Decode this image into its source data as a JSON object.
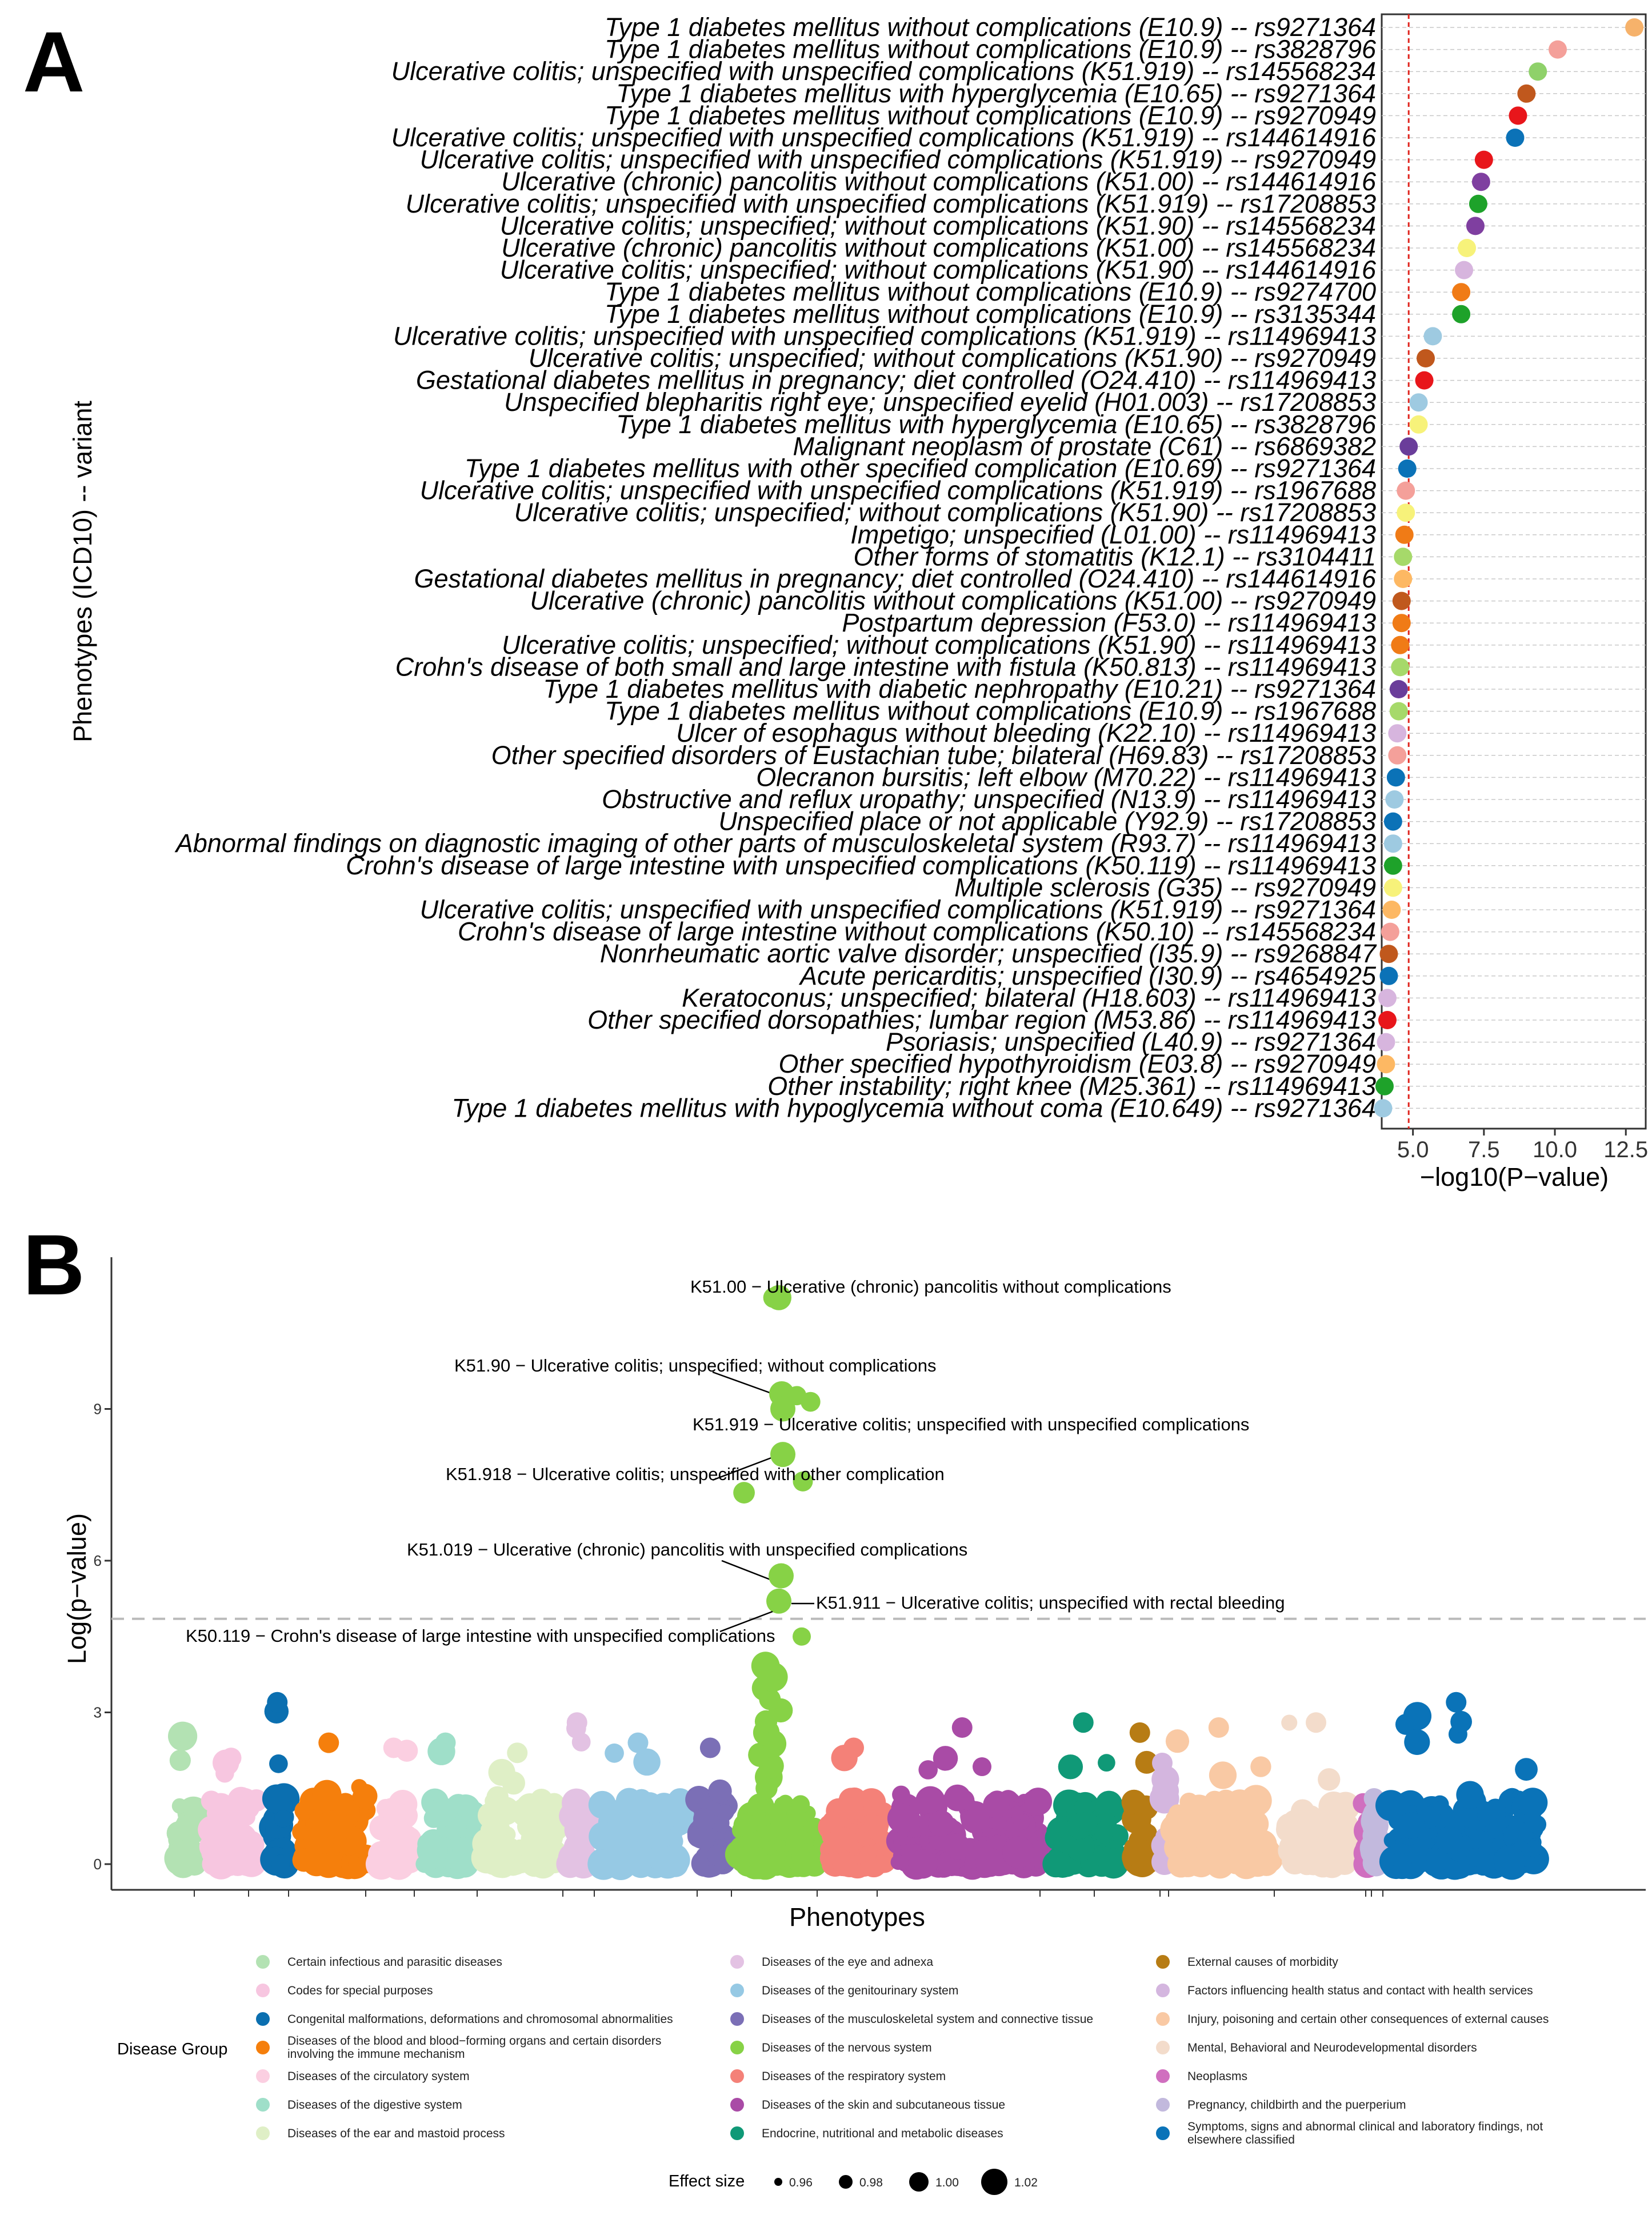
{
  "panel_a": {
    "letter": "A",
    "chart_data": {
      "type": "scatter",
      "orientation": "horizontal-dotplot",
      "title": "",
      "xlabel": "−log10(P−value)",
      "ylabel": "Phenotypes (ICD10) -- variant",
      "xlim": [
        3.9,
        13.2
      ],
      "xticks": [
        5.0,
        7.5,
        10.0,
        12.5
      ],
      "xtick_labels": [
        "5.0",
        "7.5",
        "10.0",
        "12.5"
      ],
      "threshold": 4.85,
      "threshold_color": "#e0261f",
      "grid": "horizontal dashed",
      "points": [
        {
          "label": "Type 1 diabetes mellitus without complications (E10.9) -- rs9271364",
          "value": 12.8,
          "color": "#f6b26b"
        },
        {
          "label": "Type 1 diabetes mellitus without complications (E10.9) -- rs3828796",
          "value": 10.1,
          "color": "#f4a09a"
        },
        {
          "label": "Ulcerative colitis; unspecified with unspecified complications (K51.919) -- rs145568234",
          "value": 9.4,
          "color": "#8fd16a"
        },
        {
          "label": "Type 1 diabetes mellitus with hyperglycemia (E10.65) -- rs9271364",
          "value": 9.0,
          "color": "#c0581d"
        },
        {
          "label": "Type 1 diabetes mellitus without complications (E10.9) -- rs9270949",
          "value": 8.7,
          "color": "#e8161b"
        },
        {
          "label": "Ulcerative colitis; unspecified with unspecified complications (K51.919) -- rs144614916",
          "value": 8.6,
          "color": "#0b72b7"
        },
        {
          "label": "Ulcerative colitis; unspecified with unspecified complications (K51.919) -- rs9270949",
          "value": 7.5,
          "color": "#e8161b"
        },
        {
          "label": "Ulcerative (chronic) pancolitis without complications (K51.00) -- rs144614916",
          "value": 7.4,
          "color": "#7f3fa0"
        },
        {
          "label": "Ulcerative colitis; unspecified with unspecified complications (K51.919) -- rs17208853",
          "value": 7.3,
          "color": "#1ea22a"
        },
        {
          "label": "Ulcerative colitis; unspecified; without complications (K51.90) -- rs145568234",
          "value": 7.2,
          "color": "#7f3fa0"
        },
        {
          "label": "Ulcerative (chronic) pancolitis without complications (K51.00) -- rs145568234",
          "value": 6.9,
          "color": "#f7f27a"
        },
        {
          "label": "Ulcerative colitis; unspecified; without complications (K51.90) -- rs144614916",
          "value": 6.8,
          "color": "#d7b5de"
        },
        {
          "label": "Type 1 diabetes mellitus without complications (E10.9) -- rs9274700",
          "value": 6.7,
          "color": "#f07b16"
        },
        {
          "label": "Type 1 diabetes mellitus without complications (E10.9) -- rs3135344",
          "value": 6.7,
          "color": "#1ea22a"
        },
        {
          "label": "Ulcerative colitis; unspecified with unspecified complications (K51.919) -- rs114969413",
          "value": 5.7,
          "color": "#9ecae1"
        },
        {
          "label": "Ulcerative colitis; unspecified; without complications (K51.90) -- rs9270949",
          "value": 5.45,
          "color": "#c0581d"
        },
        {
          "label": "Gestational diabetes mellitus in pregnancy; diet controlled (O24.410) -- rs114969413",
          "value": 5.4,
          "color": "#e8161b"
        },
        {
          "label": "Unspecified blepharitis right eye; unspecified eyelid (H01.003) -- rs17208853",
          "value": 5.2,
          "color": "#9ecae1"
        },
        {
          "label": "Type 1 diabetes mellitus with hyperglycemia (E10.65) -- rs3828796",
          "value": 5.2,
          "color": "#f7f27a"
        },
        {
          "label": "Malignant neoplasm of prostate (C61) -- rs6869382",
          "value": 4.85,
          "color": "#6a3d9a"
        },
        {
          "label": "Type 1 diabetes mellitus with other specified complication (E10.69) -- rs9271364",
          "value": 4.8,
          "color": "#0b72b7"
        },
        {
          "label": "Ulcerative colitis; unspecified with unspecified complications (K51.919) -- rs1967688",
          "value": 4.75,
          "color": "#f4a09a"
        },
        {
          "label": "Ulcerative colitis; unspecified; without complications (K51.90) -- rs17208853",
          "value": 4.75,
          "color": "#f7f27a"
        },
        {
          "label": "Impetigo; unspecified (L01.00) -- rs114969413",
          "value": 4.7,
          "color": "#f07b16"
        },
        {
          "label": "Other forms of stomatitis (K12.1) -- rs3104411",
          "value": 4.65,
          "color": "#a6d96a"
        },
        {
          "label": "Gestational diabetes mellitus in pregnancy; diet controlled (O24.410) -- rs144614916",
          "value": 4.65,
          "color": "#fdb863"
        },
        {
          "label": "Ulcerative (chronic) pancolitis without complications (K51.00) -- rs9270949",
          "value": 4.6,
          "color": "#c0581d"
        },
        {
          "label": "Postpartum depression (F53.0) -- rs114969413",
          "value": 4.6,
          "color": "#f07b16"
        },
        {
          "label": "Ulcerative colitis; unspecified; without complications (K51.90) -- rs114969413",
          "value": 4.55,
          "color": "#f07b16"
        },
        {
          "label": "Crohn's disease of both small and large intestine with fistula (K50.813) -- rs114969413",
          "value": 4.55,
          "color": "#a6d96a"
        },
        {
          "label": "Type 1 diabetes mellitus with diabetic nephropathy (E10.21) -- rs9271364",
          "value": 4.5,
          "color": "#6a3d9a"
        },
        {
          "label": "Type 1 diabetes mellitus without complications (E10.9) -- rs1967688",
          "value": 4.5,
          "color": "#a6d96a"
        },
        {
          "label": "Ulcer of esophagus without bleeding (K22.10) -- rs114969413",
          "value": 4.45,
          "color": "#d7b5de"
        },
        {
          "label": "Other specified disorders of Eustachian tube; bilateral (H69.83) -- rs17208853",
          "value": 4.45,
          "color": "#f4a09a"
        },
        {
          "label": "Olecranon bursitis; left elbow (M70.22) -- rs114969413",
          "value": 4.4,
          "color": "#0b72b7"
        },
        {
          "label": "Obstructive and reflux uropathy; unspecified (N13.9) -- rs114969413",
          "value": 4.35,
          "color": "#9ecae1"
        },
        {
          "label": "Unspecified place or not applicable (Y92.9) -- rs17208853",
          "value": 4.3,
          "color": "#0b72b7"
        },
        {
          "label": "Abnormal findings on diagnostic imaging of other parts of musculoskeletal system (R93.7) -- rs114969413",
          "value": 4.3,
          "color": "#9ecae1"
        },
        {
          "label": "Crohn's disease of large intestine with unspecified complications (K50.119) -- rs114969413",
          "value": 4.3,
          "color": "#1ea22a"
        },
        {
          "label": "Multiple sclerosis (G35) -- rs9270949",
          "value": 4.3,
          "color": "#f7f27a"
        },
        {
          "label": "Ulcerative colitis; unspecified with unspecified complications (K51.919) -- rs9271364",
          "value": 4.25,
          "color": "#fdb863"
        },
        {
          "label": "Crohn's disease of large intestine without complications (K50.10) -- rs145568234",
          "value": 4.2,
          "color": "#f4a09a"
        },
        {
          "label": "Nonrheumatic aortic valve disorder; unspecified (I35.9) -- rs9268847",
          "value": 4.15,
          "color": "#c0581d"
        },
        {
          "label": "Acute pericarditis; unspecified (I30.9) -- rs4654925",
          "value": 4.15,
          "color": "#0b72b7"
        },
        {
          "label": "Keratoconus; unspecified; bilateral (H18.603) -- rs114969413",
          "value": 4.1,
          "color": "#d7b5de"
        },
        {
          "label": "Other specified dorsopathies; lumbar region (M53.86) -- rs114969413",
          "value": 4.1,
          "color": "#e8161b"
        },
        {
          "label": "Psoriasis; unspecified (L40.9) -- rs9271364",
          "value": 4.05,
          "color": "#d7b5de"
        },
        {
          "label": "Other specified hypothyroidism (E03.8) -- rs9270949",
          "value": 4.05,
          "color": "#fdb863"
        },
        {
          "label": "Other instability; right knee (M25.361) -- rs114969413",
          "value": 4.0,
          "color": "#1ea22a"
        },
        {
          "label": "Type 1 diabetes mellitus with hypoglycemia without coma (E10.649) -- rs9271364",
          "value": 3.95,
          "color": "#9ecae1"
        }
      ]
    }
  },
  "panel_b": {
    "letter": "B",
    "chart_data": {
      "type": "scatter",
      "subtype": "manhattan",
      "title": "",
      "xlabel": "Phenotypes",
      "ylabel": "Log(p−value)",
      "ylim": [
        0,
        12
      ],
      "yticks": [
        0,
        3,
        6,
        9
      ],
      "ytick_labels": [
        "0",
        "3",
        "6",
        "9"
      ],
      "threshold": 4.85,
      "groups": [
        {
          "name": "Certain infectious and parasitic diseases",
          "color": "#b3e2b3",
          "max": 2.6
        },
        {
          "name": "Codes for special purposes",
          "color": "#f7c6e0",
          "max": 2.1
        },
        {
          "name": "Congenital malformations, deformations and chromosomal abnormalities",
          "color": "#0b6fb0",
          "max": 3.2
        },
        {
          "name": "Diseases of the blood and blood−forming organs and certain disorders involving the immune mechanism",
          "color": "#f57f0c",
          "max": 2.4
        },
        {
          "name": "Diseases of the circulatory system",
          "color": "#fbcfe1",
          "max": 2.3
        },
        {
          "name": "Diseases of the digestive system",
          "color": "#9fdfc9",
          "max": 2.4
        },
        {
          "name": "Diseases of the ear and mastoid process",
          "color": "#dfefc6",
          "max": 2.2
        },
        {
          "name": "Diseases of the eye and adnexa",
          "color": "#e3c2e3",
          "max": 2.8
        },
        {
          "name": "Diseases of the genitourinary system",
          "color": "#96c9e4",
          "max": 2.4
        },
        {
          "name": "Diseases of the musculoskeletal system and connective tissue",
          "color": "#7b6fb6",
          "max": 2.3
        },
        {
          "name": "Diseases of the nervous system",
          "color": "#87d246",
          "max": 11.2
        },
        {
          "name": "Diseases of the respiratory system",
          "color": "#f48178",
          "max": 2.3
        },
        {
          "name": "Diseases of the skin and subcutaneous tissue",
          "color": "#a94ba6",
          "max": 2.7
        },
        {
          "name": "Endocrine, nutritional and metabolic diseases",
          "color": "#109977",
          "max": 2.8
        },
        {
          "name": "External causes of morbidity",
          "color": "#b77c14",
          "max": 2.6
        },
        {
          "name": "Factors influencing health status and contact with health services",
          "color": "#d4b6df",
          "max": 2.0
        },
        {
          "name": "Injury, poisoning and certain other consequences of external causes",
          "color": "#f9c9a4",
          "max": 2.7
        },
        {
          "name": "Mental, Behavioral and Neurodevelopmental disorders",
          "color": "#f3dccb",
          "max": 2.8
        },
        {
          "name": "Neoplasms",
          "color": "#d06fbf",
          "max": 1.2
        },
        {
          "name": "Pregnancy, childbirth and the puerperium",
          "color": "#c2b9dd",
          "max": 1.3
        },
        {
          "name": "Symptoms, signs and abnormal clinical and laboratory findings, not elsewhere classified",
          "color": "#0a73b8",
          "max": 3.2
        }
      ],
      "annotations": [
        {
          "label": "K51.00 − Ulcerative (chronic) pancolitis without complications",
          "value": 11.2
        },
        {
          "label": "K51.90 − Ulcerative colitis; unspecified; without complications",
          "value": 9.3
        },
        {
          "label": "K51.919 − Ulcerative colitis; unspecified with unspecified complications",
          "value": 9.0
        },
        {
          "label": "K51.918 − Ulcerative colitis; unspecified with other complication",
          "value": 8.1
        },
        {
          "label": "K51.019 − Ulcerative (chronic) pancolitis with unspecified complications",
          "value": 5.7
        },
        {
          "label": "K51.911 − Ulcerative colitis; unspecified with rectal bleeding",
          "value": 5.2
        },
        {
          "label": "K50.119 − Crohn's disease of large intestine with unspecified complications",
          "value": 4.5
        }
      ],
      "legend_title": "Disease Group",
      "size_legend": {
        "title": "Effect size",
        "values": [
          "0.96",
          "0.98",
          "1.00",
          "1.02"
        ]
      }
    }
  }
}
